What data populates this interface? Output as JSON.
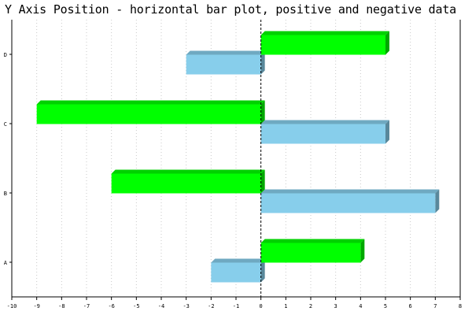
{
  "chart_data": {
    "type": "bar",
    "orientation": "horizontal",
    "title": "Y Axis Position - horizontal bar plot, positive and negative data",
    "categories": [
      "A",
      "B",
      "C",
      "D"
    ],
    "series": [
      {
        "values": [
          -2,
          7,
          5,
          -3
        ],
        "color": "#87ceeb"
      },
      {
        "values": [
          4,
          -6,
          -9,
          5
        ],
        "color": "#00ff00"
      }
    ],
    "xlim": [
      -10,
      8
    ],
    "xticks": [
      -10,
      -9,
      -8,
      -7,
      -6,
      -5,
      -4,
      -3,
      -2,
      -1,
      0,
      1,
      2,
      3,
      4,
      5,
      6,
      7,
      8
    ],
    "grid": "vertical dotted",
    "zero_line": "dashed",
    "xlabel": "",
    "ylabel": ""
  }
}
